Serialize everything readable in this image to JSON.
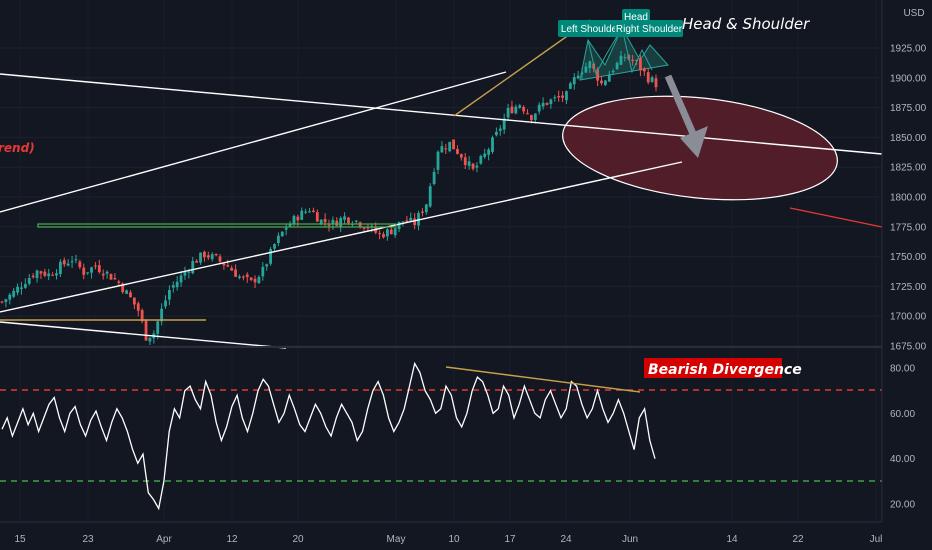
{
  "chart_data": [
    {
      "type": "candlestick",
      "pane": "price",
      "currency": "USD",
      "y_ticks": [
        1675,
        1700,
        1725,
        1750,
        1775,
        1800,
        1825,
        1850,
        1875,
        1900,
        1925
      ],
      "y_tick_labels": [
        "1675.00",
        "1700.00",
        "1725.00",
        "1750.00",
        "1775.00",
        "1800.00",
        "1825.00",
        "1850.00",
        "1875.00",
        "1900.00",
        "1925.00"
      ],
      "ylim": [
        1652,
        1936
      ],
      "colors": {
        "up": "#26a69a",
        "down": "#ef5350",
        "uptrend": "#ffffff",
        "fib_line": "#c6a04a",
        "support_box": "#4caf50",
        "target_zone": "#5c1f2a",
        "arrow": "#787b86",
        "hs_fill": "#1e5f5a"
      },
      "annotations": {
        "title": "Head & Shoulder",
        "left_label": "rend)",
        "tags": [
          {
            "text": "Left Shoulde",
            "color": "#00897b"
          },
          {
            "text": "Head",
            "color": "#00897b"
          },
          {
            "text": "Right Shoulder",
            "color": "#00897b"
          }
        ]
      },
      "close_path_approx": [
        [
          0,
          1712
        ],
        [
          3,
          1720
        ],
        [
          6,
          1730
        ],
        [
          9,
          1738
        ],
        [
          12,
          1735
        ],
        [
          15,
          1742
        ],
        [
          18,
          1748
        ],
        [
          21,
          1737
        ],
        [
          24,
          1742
        ],
        [
          27,
          1736
        ],
        [
          30,
          1728
        ],
        [
          33,
          1715
        ],
        [
          35,
          1705
        ],
        [
          37,
          1683
        ],
        [
          39,
          1686
        ],
        [
          41,
          1705
        ],
        [
          43,
          1722
        ],
        [
          46,
          1733
        ],
        [
          49,
          1745
        ],
        [
          52,
          1752
        ],
        [
          55,
          1748
        ],
        [
          58,
          1742
        ],
        [
          61,
          1733
        ],
        [
          64,
          1728
        ],
        [
          67,
          1738
        ],
        [
          70,
          1760
        ],
        [
          73,
          1775
        ],
        [
          76,
          1784
        ],
        [
          79,
          1790
        ],
        [
          82,
          1780
        ],
        [
          85,
          1778
        ],
        [
          88,
          1783
        ],
        [
          91,
          1780
        ],
        [
          94,
          1775
        ],
        [
          97,
          1768
        ],
        [
          100,
          1772
        ],
        [
          103,
          1780
        ],
        [
          106,
          1778
        ],
        [
          109,
          1795
        ],
        [
          112,
          1840
        ],
        [
          115,
          1845
        ],
        [
          118,
          1835
        ],
        [
          121,
          1822
        ],
        [
          124,
          1835
        ],
        [
          127,
          1852
        ],
        [
          130,
          1872
        ],
        [
          133,
          1878
        ],
        [
          136,
          1868
        ],
        [
          139,
          1878
        ],
        [
          142,
          1882
        ],
        [
          145,
          1885
        ],
        [
          148,
          1905
        ],
        [
          151,
          1912
        ],
        [
          154,
          1895
        ],
        [
          157,
          1908
        ],
        [
          160,
          1918
        ],
        [
          163,
          1912
        ],
        [
          166,
          1900
        ],
        [
          168,
          1895
        ]
      ]
    },
    {
      "type": "line",
      "pane": "rsi",
      "series": [
        {
          "values": [
            53,
            58,
            50,
            56,
            62,
            55,
            60,
            52,
            58,
            64,
            67,
            58,
            52,
            60,
            63,
            55,
            50,
            57,
            61,
            54,
            48,
            56,
            62,
            58,
            52,
            44,
            38,
            42,
            25,
            22,
            18,
            30,
            52,
            62,
            58,
            70,
            72,
            66,
            62,
            74,
            68,
            56,
            48,
            54,
            63,
            68,
            58,
            52,
            60,
            70,
            75,
            72,
            64,
            56,
            60,
            68,
            62,
            55,
            52,
            58,
            64,
            60,
            54,
            50,
            58,
            64,
            60,
            56,
            48,
            52,
            62,
            70,
            74,
            68,
            58,
            52,
            56,
            62,
            72,
            82,
            78,
            70,
            66,
            60,
            62,
            72,
            68,
            58,
            54,
            60,
            70,
            76,
            74,
            68,
            60,
            62,
            72,
            68,
            58,
            64,
            72,
            66,
            60,
            58,
            66,
            70,
            64,
            58,
            62,
            74,
            72,
            64,
            58,
            62,
            70,
            62,
            56,
            60,
            66,
            60,
            52,
            44,
            58,
            62,
            48,
            40
          ]
        }
      ],
      "y_ticks": [
        20,
        40,
        60,
        80
      ],
      "y_tick_labels": [
        "20.00",
        "40.00",
        "60.00",
        "80.00"
      ],
      "ylim": [
        12,
        88
      ],
      "overbought": 70,
      "oversold": 30,
      "annotation": "Bearish Divergence",
      "colors": {
        "line": "#ffffff",
        "overbought": "#e53935",
        "oversold": "#43a047",
        "divergence": "#c6a04a",
        "label_bg": "#d50000"
      }
    }
  ],
  "x_axis": {
    "ticks": [
      {
        "label": "15"
      },
      {
        "label": "23"
      },
      {
        "label": "Apr"
      },
      {
        "label": "12"
      },
      {
        "label": "20"
      },
      {
        "label": "May"
      },
      {
        "label": "10"
      },
      {
        "label": "17"
      },
      {
        "label": "24"
      },
      {
        "label": "Jun"
      },
      {
        "label": "14"
      },
      {
        "label": "22"
      },
      {
        "label": "Jul"
      }
    ]
  }
}
